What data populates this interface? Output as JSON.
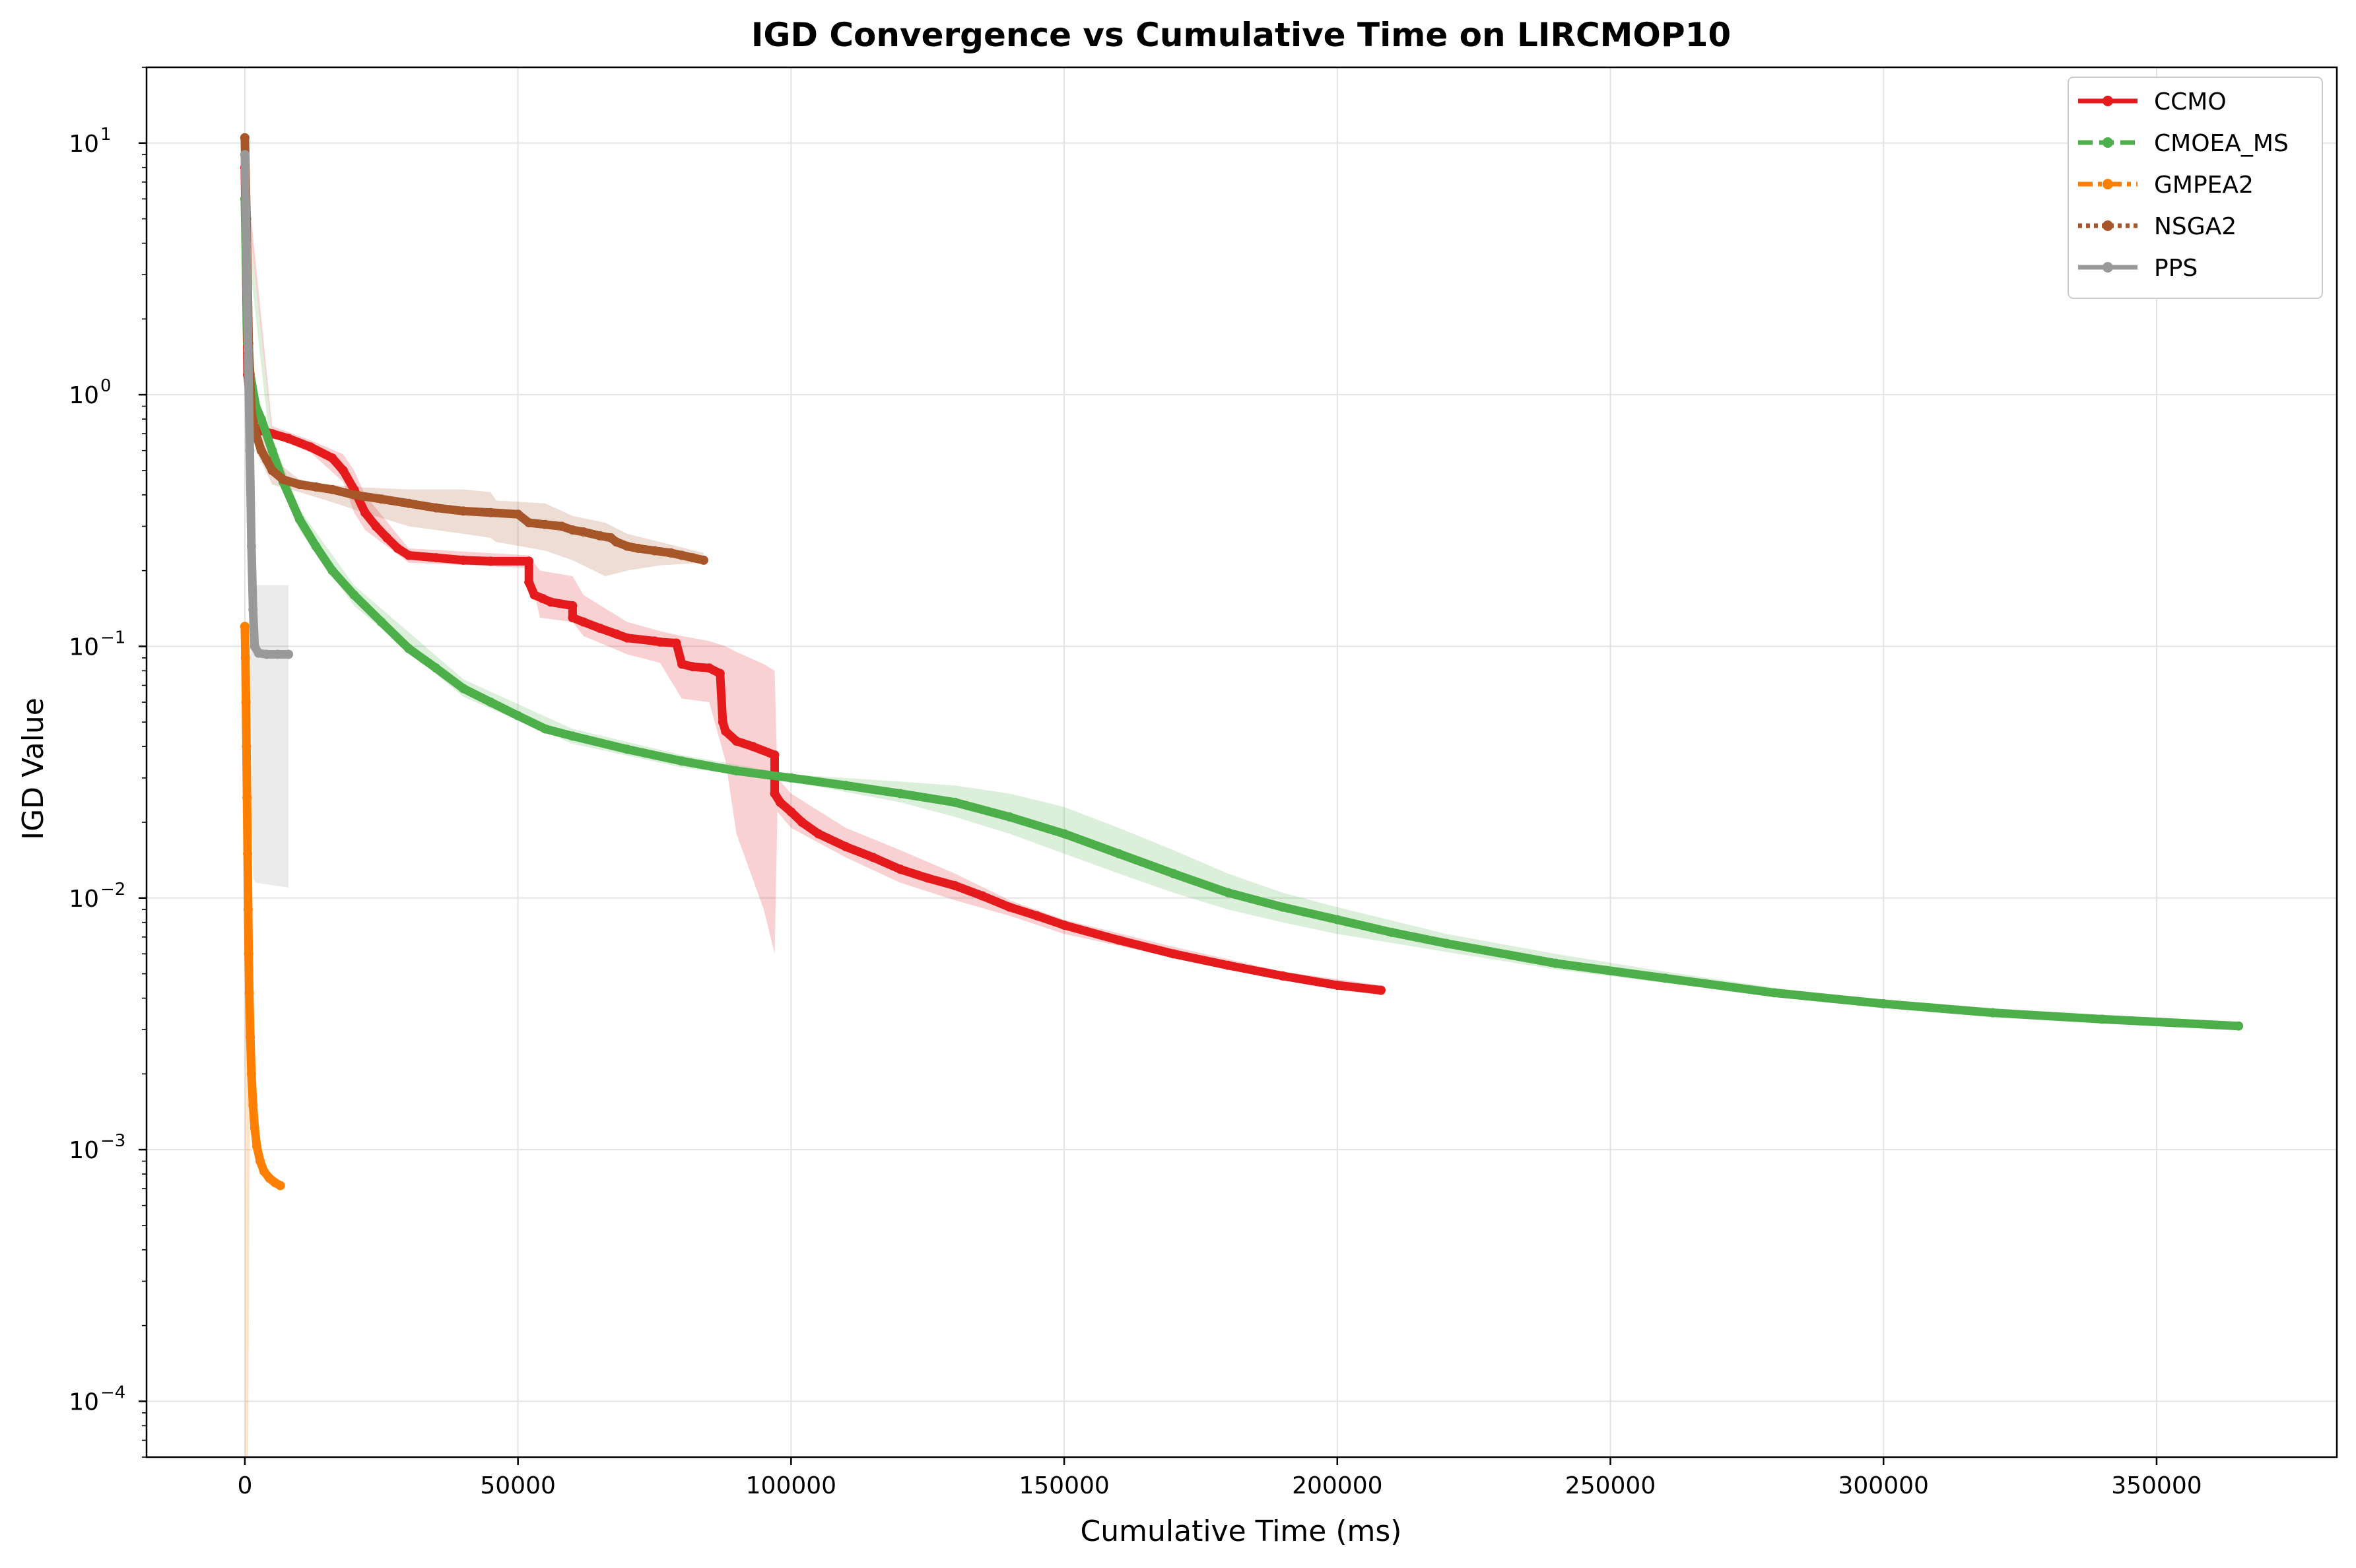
{
  "chart_data": {
    "type": "line",
    "title": "IGD Convergence vs Cumulative Time on LIRCMOP10",
    "xlabel": "Cumulative Time (ms)",
    "ylabel": "IGD Value",
    "xscale": "linear",
    "yscale": "log",
    "xlim": [
      -18000,
      383000
    ],
    "ylim": [
      6e-05,
      20
    ],
    "x_ticks": [
      0,
      50000,
      100000,
      150000,
      200000,
      250000,
      300000,
      350000
    ],
    "x_tick_labels": [
      "0",
      "50000",
      "100000",
      "150000",
      "200000",
      "250000",
      "300000",
      "350000"
    ],
    "y_ticks": [
      0.0001,
      0.001,
      0.01,
      0.1,
      1,
      10
    ],
    "y_tick_labels": [
      {
        "base": "10",
        "exp": "−4"
      },
      {
        "base": "10",
        "exp": "−3"
      },
      {
        "base": "10",
        "exp": "−2"
      },
      {
        "base": "10",
        "exp": "−1"
      },
      {
        "base": "10",
        "exp": "0"
      },
      {
        "base": "10",
        "exp": "1"
      }
    ],
    "grid": true,
    "legend_position": "upper right",
    "series": [
      {
        "name": "CCMO",
        "color": "#e41a1c",
        "line_style": "solid",
        "x": [
          0,
          500,
          1500,
          3000,
          5000,
          8000,
          12000,
          16000,
          18000,
          20000,
          22000,
          24000,
          26000,
          28000,
          30000,
          35000,
          40000,
          45000,
          52000,
          52000,
          53000,
          54500,
          56000,
          60000,
          60000,
          62000,
          65000,
          68000,
          70000,
          75000,
          76000,
          79000,
          80000,
          82000,
          85000,
          87000,
          87500,
          88000,
          90000,
          93000,
          97000,
          97000,
          98000,
          100000,
          102000,
          105000,
          110000,
          115000,
          120000,
          125000,
          130000,
          135000,
          140000,
          145000,
          150000,
          160000,
          170000,
          180000,
          190000,
          200000,
          208000
        ],
        "y": [
          8.0,
          1.2,
          0.75,
          0.72,
          0.7,
          0.67,
          0.62,
          0.56,
          0.5,
          0.42,
          0.34,
          0.3,
          0.27,
          0.245,
          0.23,
          0.225,
          0.22,
          0.218,
          0.218,
          0.18,
          0.16,
          0.155,
          0.15,
          0.145,
          0.13,
          0.125,
          0.118,
          0.112,
          0.108,
          0.105,
          0.104,
          0.103,
          0.085,
          0.083,
          0.082,
          0.078,
          0.05,
          0.046,
          0.042,
          0.04,
          0.037,
          0.026,
          0.024,
          0.022,
          0.02,
          0.018,
          0.016,
          0.0145,
          0.013,
          0.012,
          0.0112,
          0.0102,
          0.0092,
          0.0085,
          0.0078,
          0.0068,
          0.006,
          0.0054,
          0.0049,
          0.0045,
          0.0043
        ],
        "band_x": [
          0,
          5000,
          12000,
          18000,
          20000,
          22000,
          30000,
          52000,
          54000,
          60000,
          62000,
          70000,
          76000,
          80000,
          85000,
          88000,
          90000,
          95000,
          97000,
          97500,
          100000,
          110000,
          120000,
          130000,
          140000,
          150000,
          170000,
          190000,
          208000
        ],
        "band_upper": [
          9.0,
          0.75,
          0.66,
          0.58,
          0.5,
          0.4,
          0.245,
          0.23,
          0.2,
          0.19,
          0.16,
          0.125,
          0.115,
          0.11,
          0.105,
          0.1,
          0.095,
          0.085,
          0.08,
          0.03,
          0.026,
          0.019,
          0.0155,
          0.0125,
          0.0098,
          0.0082,
          0.0064,
          0.0051,
          0.0045
        ],
        "band_lower": [
          7.0,
          0.68,
          0.59,
          0.45,
          0.34,
          0.29,
          0.215,
          0.205,
          0.13,
          0.125,
          0.11,
          0.093,
          0.086,
          0.062,
          0.06,
          0.035,
          0.018,
          0.009,
          0.006,
          0.022,
          0.019,
          0.0145,
          0.0115,
          0.0098,
          0.0085,
          0.0072,
          0.0058,
          0.0048,
          0.0041
        ]
      },
      {
        "name": "CMOEA_MS",
        "color": "#4daf4a",
        "line_style": "dashed",
        "x": [
          0,
          500,
          1000,
          2000,
          3000,
          5000,
          7000,
          10000,
          13000,
          16000,
          20000,
          25000,
          30000,
          35000,
          40000,
          45000,
          50000,
          55000,
          60000,
          70000,
          80000,
          90000,
          100000,
          110000,
          120000,
          130000,
          140000,
          150000,
          160000,
          170000,
          180000,
          190000,
          200000,
          210000,
          220000,
          240000,
          260000,
          280000,
          300000,
          320000,
          340000,
          365000
        ],
        "y": [
          6.0,
          1.6,
          1.2,
          0.9,
          0.8,
          0.6,
          0.45,
          0.32,
          0.25,
          0.2,
          0.16,
          0.125,
          0.098,
          0.082,
          0.068,
          0.06,
          0.053,
          0.047,
          0.044,
          0.039,
          0.035,
          0.032,
          0.03,
          0.028,
          0.026,
          0.024,
          0.021,
          0.018,
          0.015,
          0.0125,
          0.0105,
          0.0092,
          0.0082,
          0.0073,
          0.0066,
          0.0055,
          0.0048,
          0.0042,
          0.0038,
          0.0035,
          0.0033,
          0.0031
        ],
        "band_x": [
          0,
          5000,
          10000,
          20000,
          40000,
          60000,
          80000,
          100000,
          120000,
          130000,
          140000,
          150000,
          160000,
          170000,
          180000,
          190000,
          200000,
          220000,
          240000,
          260000,
          280000,
          300000,
          320000,
          340000,
          365000
        ],
        "band_upper": [
          7.0,
          0.68,
          0.35,
          0.175,
          0.074,
          0.047,
          0.037,
          0.031,
          0.029,
          0.028,
          0.026,
          0.023,
          0.019,
          0.0155,
          0.0125,
          0.0105,
          0.0092,
          0.0072,
          0.006,
          0.0051,
          0.0044,
          0.0039,
          0.0036,
          0.0034,
          0.0032
        ],
        "band_lower": [
          5.0,
          0.53,
          0.29,
          0.145,
          0.063,
          0.041,
          0.033,
          0.029,
          0.024,
          0.021,
          0.018,
          0.015,
          0.0125,
          0.0105,
          0.009,
          0.008,
          0.0072,
          0.0061,
          0.0052,
          0.0046,
          0.0041,
          0.0037,
          0.0034,
          0.0032,
          0.003
        ]
      },
      {
        "name": "GMPEA2",
        "color": "#ff7f00",
        "line_style": "dashdot",
        "x": [
          0,
          100,
          200,
          300,
          400,
          500,
          600,
          700,
          800,
          1000,
          1200,
          1500,
          1800,
          2200,
          2800,
          3500,
          4500,
          5500,
          6500
        ],
        "y": [
          0.12,
          0.09,
          0.06,
          0.04,
          0.025,
          0.015,
          0.009,
          0.006,
          0.0042,
          0.0028,
          0.002,
          0.0015,
          0.00122,
          0.00103,
          0.0009,
          0.00082,
          0.00077,
          0.00074,
          0.00072
        ],
        "band_x": [
          0,
          100,
          300,
          600,
          1000,
          2000,
          4000,
          6500
        ],
        "band_upper": [
          0.15,
          0.1,
          0.045,
          0.007,
          0.003,
          0.0011,
          0.00078,
          0.00073
        ],
        "band_lower": [
          6e-05,
          6e-05,
          6e-05,
          6e-05,
          0.0025,
          0.00098,
          0.00076,
          0.00071
        ]
      },
      {
        "name": "NSGA2",
        "color": "#a65628",
        "line_style": "dotted",
        "x": [
          0,
          300,
          700,
          1200,
          2000,
          3000,
          4000,
          5000,
          7000,
          10000,
          13000,
          16000,
          20000,
          25000,
          30000,
          35000,
          40000,
          45000,
          50000,
          52000,
          55000,
          58000,
          60000,
          62000,
          65000,
          67000,
          68000,
          70000,
          72000,
          75000,
          78000,
          80000,
          82000,
          84000
        ],
        "y": [
          10.5,
          5.0,
          1.6,
          0.85,
          0.7,
          0.6,
          0.55,
          0.5,
          0.46,
          0.44,
          0.43,
          0.42,
          0.4,
          0.385,
          0.37,
          0.355,
          0.345,
          0.34,
          0.335,
          0.31,
          0.305,
          0.3,
          0.29,
          0.285,
          0.275,
          0.27,
          0.26,
          0.25,
          0.245,
          0.24,
          0.235,
          0.23,
          0.225,
          0.22
        ],
        "band_x": [
          0,
          2000,
          5000,
          10000,
          15000,
          20000,
          30000,
          40000,
          45000,
          46000,
          55000,
          60000,
          66000,
          70000,
          76000,
          84000
        ],
        "band_upper": [
          11.0,
          0.8,
          0.56,
          0.46,
          0.44,
          0.43,
          0.42,
          0.42,
          0.41,
          0.38,
          0.37,
          0.33,
          0.31,
          0.28,
          0.26,
          0.235
        ],
        "band_lower": [
          9.5,
          0.6,
          0.44,
          0.41,
          0.38,
          0.35,
          0.3,
          0.28,
          0.27,
          0.26,
          0.24,
          0.22,
          0.19,
          0.2,
          0.21,
          0.215
        ]
      },
      {
        "name": "PPS",
        "color": "#999999",
        "line_style": "solid",
        "x": [
          0,
          300,
          600,
          900,
          1200,
          1500,
          1800,
          2500,
          4000,
          6000,
          8000
        ],
        "y": [
          9.0,
          4.0,
          1.5,
          0.6,
          0.25,
          0.14,
          0.1,
          0.094,
          0.093,
          0.093,
          0.093
        ],
        "band_x": [
          0,
          1500,
          2000,
          8000
        ],
        "band_upper": [
          9.5,
          0.18,
          0.175,
          0.175
        ],
        "band_lower": [
          8.0,
          0.012,
          0.0115,
          0.011
        ]
      }
    ]
  }
}
